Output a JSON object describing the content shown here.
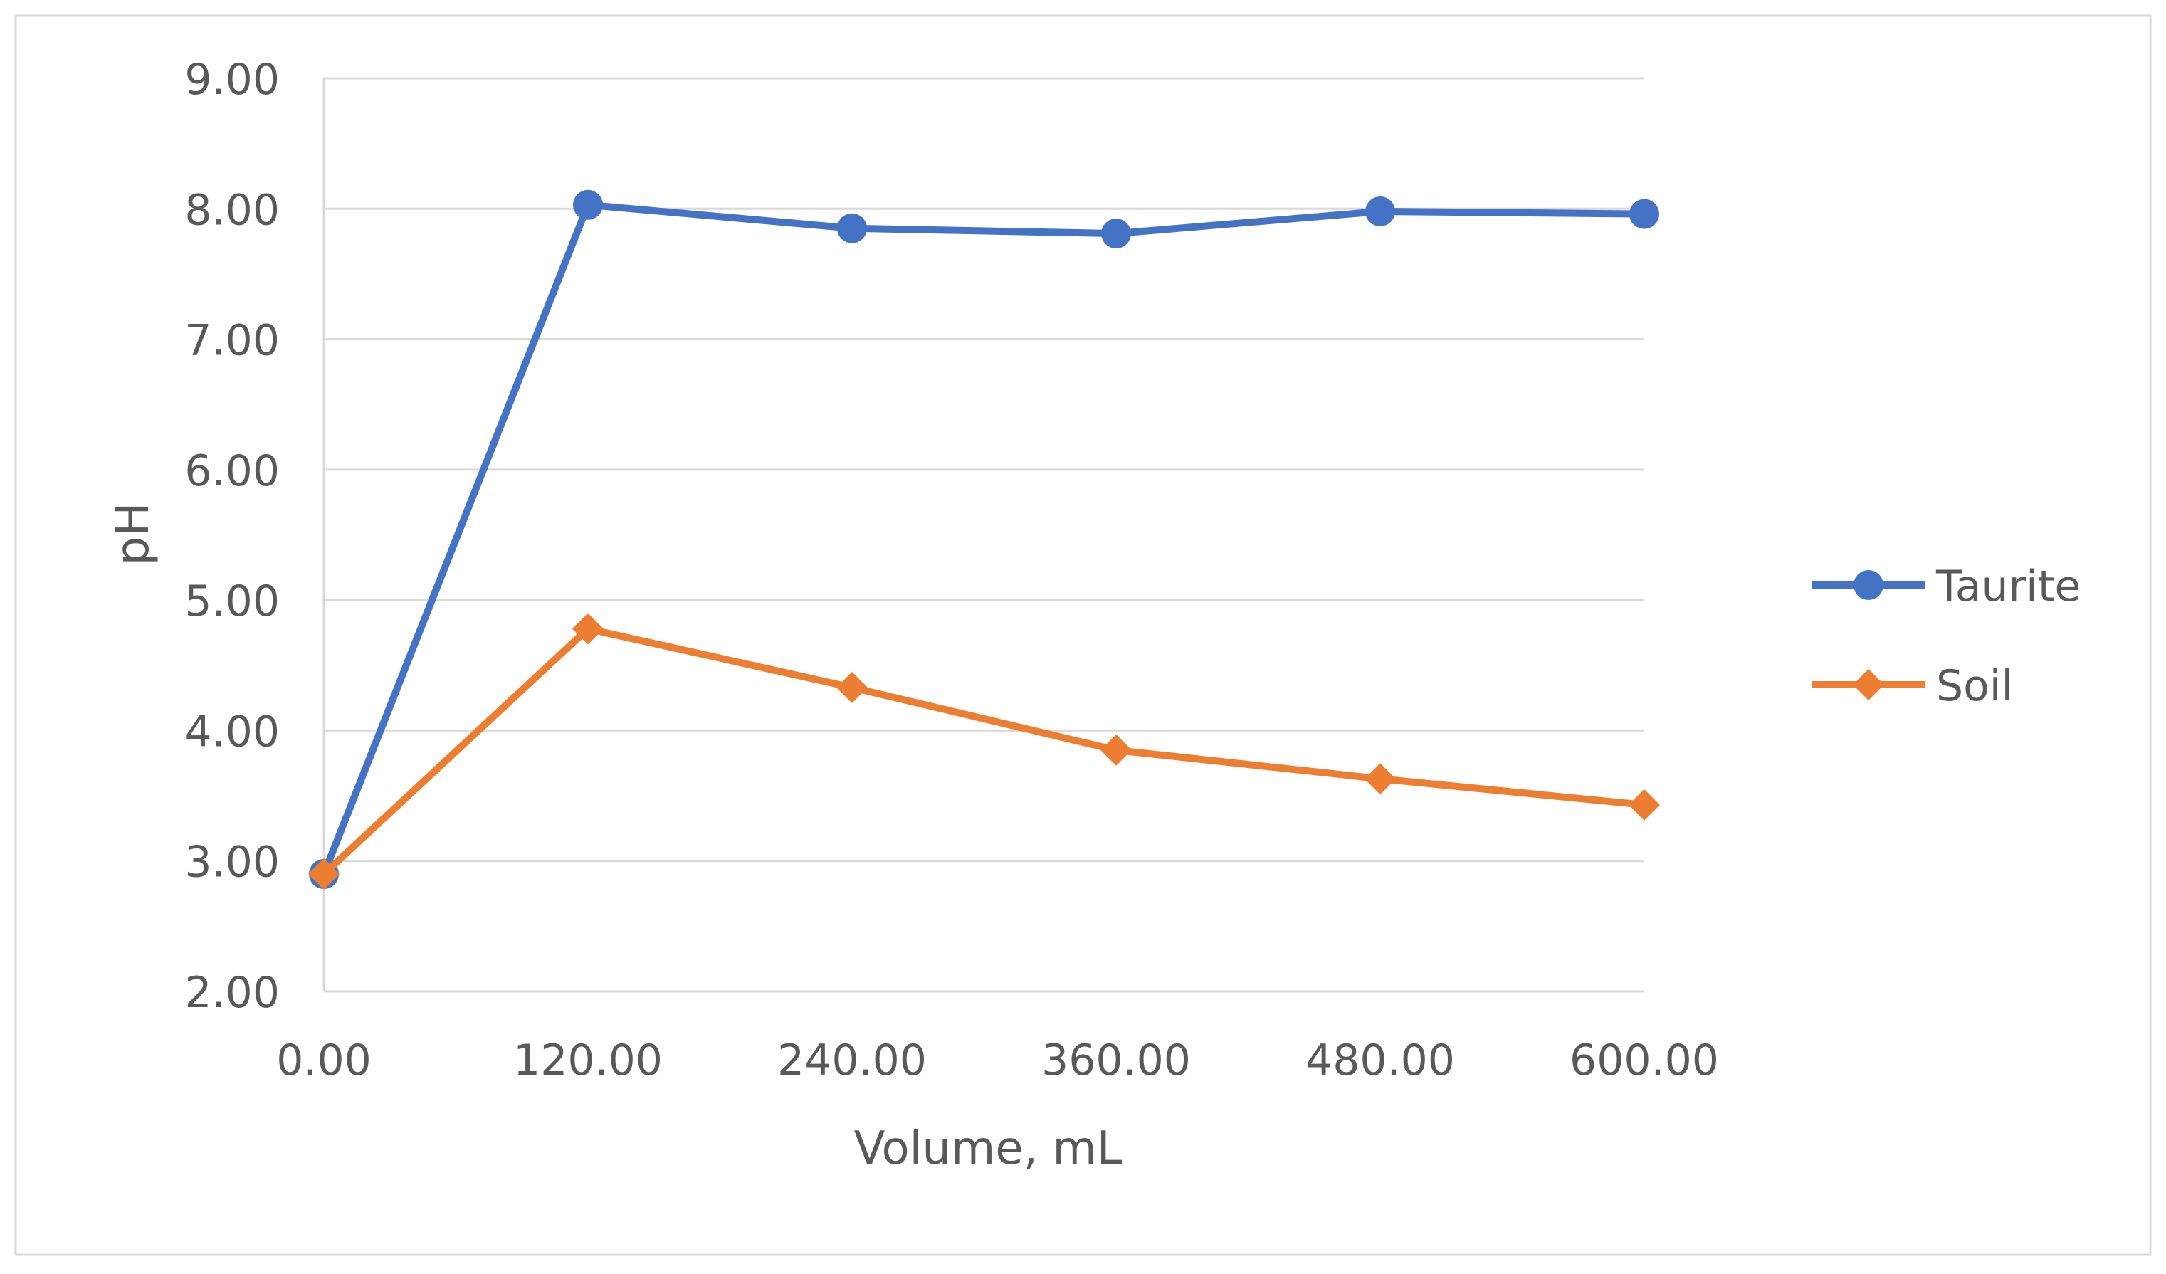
{
  "chart_data": {
    "type": "line",
    "title": "",
    "xlabel": "Volume, mL",
    "ylabel": "pH",
    "x": [
      0,
      120,
      240,
      360,
      480,
      600
    ],
    "x_tick_labels": [
      "0.00",
      "120.00",
      "240.00",
      "360.00",
      "480.00",
      "600.00"
    ],
    "y_tick_labels": [
      "2.00",
      "3.00",
      "4.00",
      "5.00",
      "6.00",
      "7.00",
      "8.00",
      "9.00"
    ],
    "xlim": [
      0,
      600
    ],
    "ylim": [
      2,
      9
    ],
    "grid": "horizontal",
    "legend_position": "right",
    "series": [
      {
        "name": "Taurite",
        "color": "#4472C4",
        "marker": "circle",
        "values": [
          2.9,
          8.03,
          7.85,
          7.81,
          7.98,
          7.96
        ]
      },
      {
        "name": "Soil",
        "color": "#ED7D31",
        "marker": "diamond",
        "values": [
          2.9,
          4.78,
          4.33,
          3.85,
          3.63,
          3.43
        ]
      }
    ]
  }
}
